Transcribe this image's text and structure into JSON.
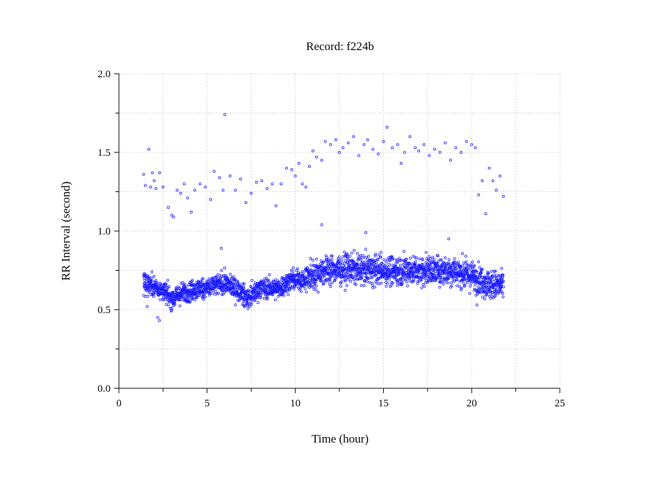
{
  "chart_data": {
    "type": "scatter",
    "title": "Record:  f224b",
    "xlabel": "Time (hour)",
    "ylabel": "RR Interval (second)",
    "xlim": [
      0,
      25
    ],
    "ylim": [
      0.0,
      2.0
    ],
    "x_ticks": [
      0,
      5,
      10,
      15,
      20,
      25
    ],
    "x_tick_labels": [
      "0",
      "5",
      "10",
      "15",
      "20",
      "25"
    ],
    "y_ticks": [
      0.0,
      0.5,
      1.0,
      1.5,
      2.0
    ],
    "y_tick_labels": [
      "0.0",
      "0.5",
      "1.0",
      "1.5",
      "2.0"
    ],
    "grid": true,
    "marker_color": "#1a1aff",
    "series": [
      {
        "name": "",
        "x_range": [
          1.4,
          21.8
        ],
        "baseline_profile": {
          "t": [
            1.4,
            2.0,
            2.5,
            3.0,
            3.5,
            4.0,
            5.0,
            6.0,
            6.8,
            7.3,
            8.0,
            9.0,
            9.8,
            10.5,
            11.5,
            13.0,
            15.0,
            17.0,
            19.0,
            20.3,
            21.0,
            21.8
          ],
          "rr": [
            0.68,
            0.65,
            0.62,
            0.57,
            0.6,
            0.62,
            0.64,
            0.67,
            0.62,
            0.57,
            0.64,
            0.63,
            0.69,
            0.69,
            0.75,
            0.76,
            0.75,
            0.75,
            0.75,
            0.7,
            0.66,
            0.65
          ]
        },
        "outliers": [
          [
            1.4,
            1.36
          ],
          [
            1.5,
            1.29
          ],
          [
            1.7,
            1.52
          ],
          [
            1.8,
            1.28
          ],
          [
            1.9,
            1.37
          ],
          [
            2.0,
            1.32
          ],
          [
            2.1,
            1.27
          ],
          [
            2.3,
            1.37
          ],
          [
            2.5,
            1.28
          ],
          [
            2.8,
            1.15
          ],
          [
            3.0,
            1.1
          ],
          [
            3.1,
            1.09
          ],
          [
            3.3,
            1.26
          ],
          [
            3.5,
            1.24
          ],
          [
            3.7,
            1.3
          ],
          [
            3.9,
            1.21
          ],
          [
            4.1,
            1.12
          ],
          [
            4.3,
            1.26
          ],
          [
            4.6,
            1.3
          ],
          [
            4.9,
            1.28
          ],
          [
            5.2,
            1.2
          ],
          [
            5.4,
            1.38
          ],
          [
            5.7,
            1.34
          ],
          [
            5.9,
            1.26
          ],
          [
            6.0,
            1.74
          ],
          [
            6.3,
            1.35
          ],
          [
            6.6,
            1.26
          ],
          [
            6.9,
            1.33
          ],
          [
            7.2,
            1.18
          ],
          [
            7.5,
            1.24
          ],
          [
            7.8,
            1.31
          ],
          [
            8.1,
            1.32
          ],
          [
            8.4,
            1.27
          ],
          [
            8.7,
            1.3
          ],
          [
            8.9,
            1.16
          ],
          [
            9.2,
            1.3
          ],
          [
            9.5,
            1.4
          ],
          [
            9.8,
            1.39
          ],
          [
            10.0,
            1.35
          ],
          [
            10.2,
            1.43
          ],
          [
            10.4,
            1.3
          ],
          [
            10.6,
            1.28
          ],
          [
            10.8,
            1.41
          ],
          [
            11.0,
            1.51
          ],
          [
            11.2,
            1.47
          ],
          [
            11.5,
            1.45
          ],
          [
            11.7,
            1.57
          ],
          [
            12.0,
            1.55
          ],
          [
            12.3,
            1.58
          ],
          [
            12.5,
            1.5
          ],
          [
            12.7,
            1.53
          ],
          [
            13.0,
            1.56
          ],
          [
            13.3,
            1.6
          ],
          [
            13.6,
            1.48
          ],
          [
            13.9,
            1.55
          ],
          [
            14.1,
            1.58
          ],
          [
            14.4,
            1.52
          ],
          [
            14.7,
            1.49
          ],
          [
            15.0,
            1.57
          ],
          [
            15.2,
            1.66
          ],
          [
            15.5,
            1.53
          ],
          [
            15.8,
            1.55
          ],
          [
            16.0,
            1.43
          ],
          [
            16.2,
            1.5
          ],
          [
            16.5,
            1.6
          ],
          [
            16.8,
            1.53
          ],
          [
            17.0,
            1.51
          ],
          [
            17.3,
            1.55
          ],
          [
            17.6,
            1.48
          ],
          [
            17.9,
            1.52
          ],
          [
            18.2,
            1.5
          ],
          [
            18.5,
            1.56
          ],
          [
            18.8,
            1.45
          ],
          [
            19.1,
            1.53
          ],
          [
            19.4,
            1.5
          ],
          [
            19.7,
            1.57
          ],
          [
            20.0,
            1.55
          ],
          [
            20.2,
            1.53
          ],
          [
            20.4,
            1.23
          ],
          [
            20.6,
            1.32
          ],
          [
            20.8,
            1.11
          ],
          [
            21.0,
            1.4
          ],
          [
            21.2,
            1.32
          ],
          [
            21.4,
            1.26
          ],
          [
            21.6,
            1.35
          ],
          [
            21.8,
            1.22
          ],
          [
            1.6,
            0.52
          ],
          [
            2.2,
            0.45
          ],
          [
            2.3,
            0.43
          ],
          [
            5.8,
            0.89
          ],
          [
            11.5,
            1.04
          ],
          [
            14.0,
            0.99
          ],
          [
            18.7,
            0.95
          ],
          [
            20.3,
            0.53
          ]
        ]
      }
    ]
  }
}
